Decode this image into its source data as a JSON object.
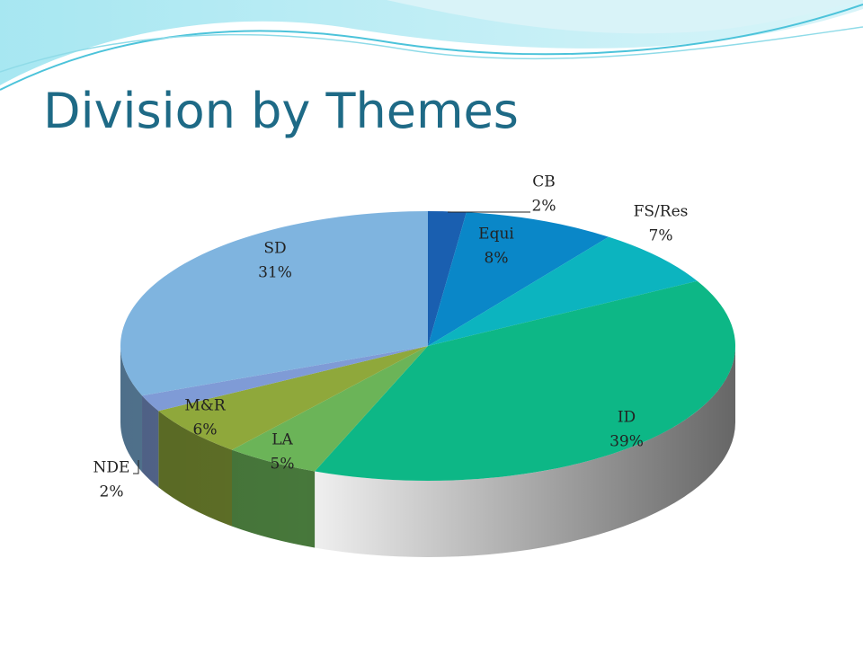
{
  "chart_data": {
    "type": "pie",
    "title": "Division by Themes",
    "categories": [
      "CB",
      "Equi",
      "FS/Res",
      "ID",
      "LA",
      "M&R",
      "NDE",
      "SD"
    ],
    "values": [
      2,
      8,
      7,
      39,
      5,
      6,
      2,
      31
    ],
    "value_labels": [
      "2%",
      "8%",
      "7%",
      "39%",
      "5%",
      "6%",
      "2%",
      "31%"
    ],
    "colors": [
      "#1a5fb0",
      "#0a87c8",
      "#0cb4bf",
      "#0db786",
      "#6bb458",
      "#8fa83b",
      "#7f9bd6",
      "#7fb4df"
    ]
  }
}
